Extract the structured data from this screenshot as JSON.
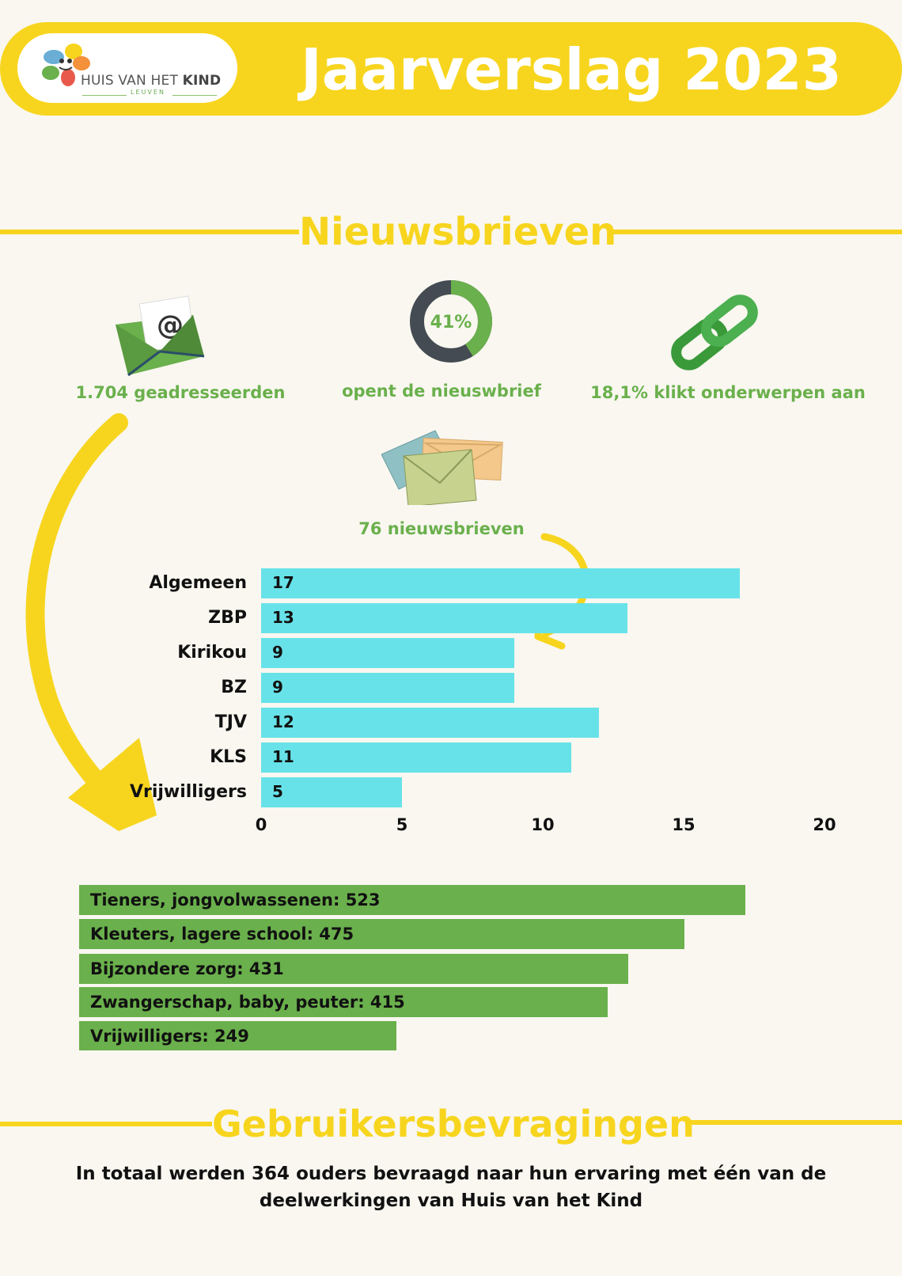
{
  "header": {
    "logo_text": "HUIS VAN HET",
    "logo_text_bold": "KIND",
    "logo_sub": "LEUVEN",
    "title": "Jaarverslag 2023"
  },
  "sections": {
    "newsletters": "Nieuwsbrieven",
    "surveys": "Gebruikersbevragingen"
  },
  "kpis": {
    "recipients": "1.704 geadresseerden",
    "open_rate": "41%",
    "open_label": "opent de nieuswbrief",
    "click_label": "18,1% klikt onderwerpen aan",
    "count_label": "76 nieuwsbrieven"
  },
  "colors": {
    "yellow": "#f7d51e",
    "green": "#6ab04c",
    "cyan": "#67e2e8",
    "dark": "#444b52"
  },
  "chart_data": [
    {
      "type": "bar",
      "orientation": "horizontal",
      "categories": [
        "Algemeen",
        "ZBP",
        "Kirikou",
        "BZ",
        "TJV",
        "KLS",
        "Vrijwilligers"
      ],
      "values": [
        17,
        13,
        9,
        9,
        12,
        11,
        5
      ],
      "xlim": [
        0,
        20
      ],
      "xticks": [
        "0",
        "5",
        "10",
        "15",
        "20"
      ],
      "grid": false,
      "color": "#67e2e8"
    },
    {
      "type": "bar",
      "orientation": "horizontal",
      "categories": [
        "Tieners, jongvolwassenen",
        "Kleuters, lagere school",
        "Bijzondere zorg",
        "Zwangerschap, baby, peuter",
        "Vrijwilligers"
      ],
      "values": [
        523,
        475,
        431,
        415,
        249
      ],
      "labels": [
        "Tieners, jongvolwassenen: 523",
        "Kleuters, lagere school: 475",
        "Bijzondere zorg: 431",
        "Zwangerschap, baby, peuter: 415",
        "Vrijwilligers: 249"
      ],
      "color": "#6ab04c"
    }
  ],
  "footer": {
    "line1": "In totaal werden 364 ouders bevraagd naar hun ervaring met één van de",
    "line2": "deelwerkingen van Huis van het Kind"
  }
}
